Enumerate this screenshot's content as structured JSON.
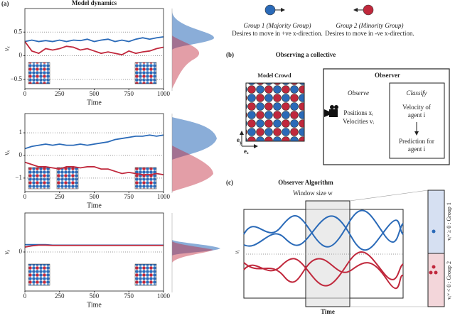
{
  "chart_data": [
    {
      "type": "line",
      "title": "Model dynamics",
      "xlabel": "Time",
      "ylabel": "vₓ",
      "x": [
        0,
        50,
        100,
        150,
        200,
        250,
        300,
        350,
        400,
        450,
        500,
        550,
        600,
        650,
        700,
        750,
        800,
        850,
        900,
        950,
        1000
      ],
      "xlim": [
        0,
        1000
      ],
      "xticks": [
        0,
        250,
        500,
        750,
        1000
      ],
      "ylim": [
        -0.7,
        1.0
      ],
      "yticks": [
        {
          "value": -0.5,
          "label": "−0.5"
        },
        0,
        0.5
      ],
      "grid": true,
      "series": [
        {
          "color": "#2a6ab8",
          "values": [
            0.3,
            0.33,
            0.3,
            0.32,
            0.3,
            0.33,
            0.3,
            0.33,
            0.32,
            0.35,
            0.3,
            0.33,
            0.35,
            0.3,
            0.33,
            0.3,
            0.35,
            0.38,
            0.35,
            0.38,
            0.4
          ]
        },
        {
          "color": "#c0283c",
          "values": [
            0.3,
            0.1,
            0.05,
            0.15,
            0.12,
            0.15,
            0.2,
            0.18,
            0.12,
            0.15,
            0.1,
            0.05,
            0.08,
            0.05,
            0.02,
            0.1,
            0.05,
            0.08,
            0.1,
            0.15,
            0.18
          ]
        }
      ]
    },
    {
      "type": "line",
      "xlabel": "Time",
      "ylabel": "vₓ",
      "x": [
        0,
        50,
        100,
        150,
        200,
        250,
        300,
        350,
        400,
        450,
        500,
        550,
        600,
        650,
        700,
        750,
        800,
        850,
        900,
        950,
        1000
      ],
      "xlim": [
        0,
        1000
      ],
      "xticks": [
        0,
        250,
        500,
        750,
        1000
      ],
      "ylim": [
        -1.6,
        1.85
      ],
      "yticks": [
        {
          "value": -1,
          "label": "−1"
        },
        0,
        1
      ],
      "grid": true,
      "series": [
        {
          "color": "#2a6ab8",
          "values": [
            0.3,
            0.4,
            0.45,
            0.5,
            0.45,
            0.5,
            0.45,
            0.45,
            0.5,
            0.45,
            0.5,
            0.55,
            0.6,
            0.7,
            0.75,
            0.8,
            0.85,
            0.85,
            0.9,
            0.85,
            0.9
          ]
        },
        {
          "color": "#c0283c",
          "values": [
            -0.3,
            -0.4,
            -0.5,
            -0.5,
            -0.55,
            -0.6,
            -0.5,
            -0.5,
            -0.55,
            -0.5,
            -0.5,
            -0.6,
            -0.6,
            -0.7,
            -0.8,
            -0.75,
            -0.8,
            -0.85,
            -0.85,
            -0.8,
            -0.85
          ]
        }
      ]
    },
    {
      "type": "line",
      "xlabel": "Time",
      "ylabel": "vₓ",
      "x": [
        0,
        50,
        100,
        150,
        200,
        250,
        300,
        350,
        400,
        450,
        500,
        550,
        600,
        650,
        700,
        750,
        800,
        850,
        900,
        950,
        1000
      ],
      "xlim": [
        0,
        1000
      ],
      "xticks": [
        0,
        250,
        500,
        750,
        1000
      ],
      "ylim": [
        -1.6,
        1.6
      ],
      "yticks": [
        0
      ],
      "grid": true,
      "series": [
        {
          "color": "#2a6ab8",
          "values": [
            0.3,
            0.3,
            0.3,
            0.3,
            0.28,
            0.28,
            0.28,
            0.28,
            0.28,
            0.28,
            0.28,
            0.28,
            0.28,
            0.28,
            0.28,
            0.28,
            0.28,
            0.28,
            0.28,
            0.28,
            0.28
          ]
        },
        {
          "color": "#c0283c",
          "values": [
            0.2,
            0.25,
            0.28,
            0.28,
            0.27,
            0.27,
            0.27,
            0.27,
            0.27,
            0.27,
            0.27,
            0.27,
            0.27,
            0.27,
            0.27,
            0.27,
            0.27,
            0.27,
            0.27,
            0.27,
            0.27
          ]
        }
      ]
    }
  ],
  "figure": {
    "panel_labels": [
      "(a)",
      "(b)",
      "(c)"
    ],
    "legend": {
      "group1": [
        "Group 1 (Majority Group)",
        "Desires to move in +ve x-direction."
      ],
      "group2": [
        "Group 2 (Minority Group)",
        "Desires to move in -ve x-direction."
      ]
    },
    "panel_b": {
      "title": "Observing a collective",
      "crowd": "Model Crowd",
      "observer": "Observer",
      "observe": "Observe",
      "positions": "Positions xᵢ",
      "velocities": "Velocities vᵢ",
      "classify": "Classify",
      "velocity": [
        "Velocity of",
        "agent i"
      ],
      "prediction": [
        "Prediction for",
        "agent i"
      ],
      "ey": [
        "e",
        "y"
      ],
      "ex": "eₓ"
    },
    "panel_c": {
      "title": "Observer Algorithm",
      "window": "Window size w",
      "xlabel": "Time",
      "ylabel": "vᵢ",
      "group1": "vᵢʷ ≥ 0 : Group 1",
      "group2": "vᵢʷ < 0 : Group 2"
    }
  }
}
